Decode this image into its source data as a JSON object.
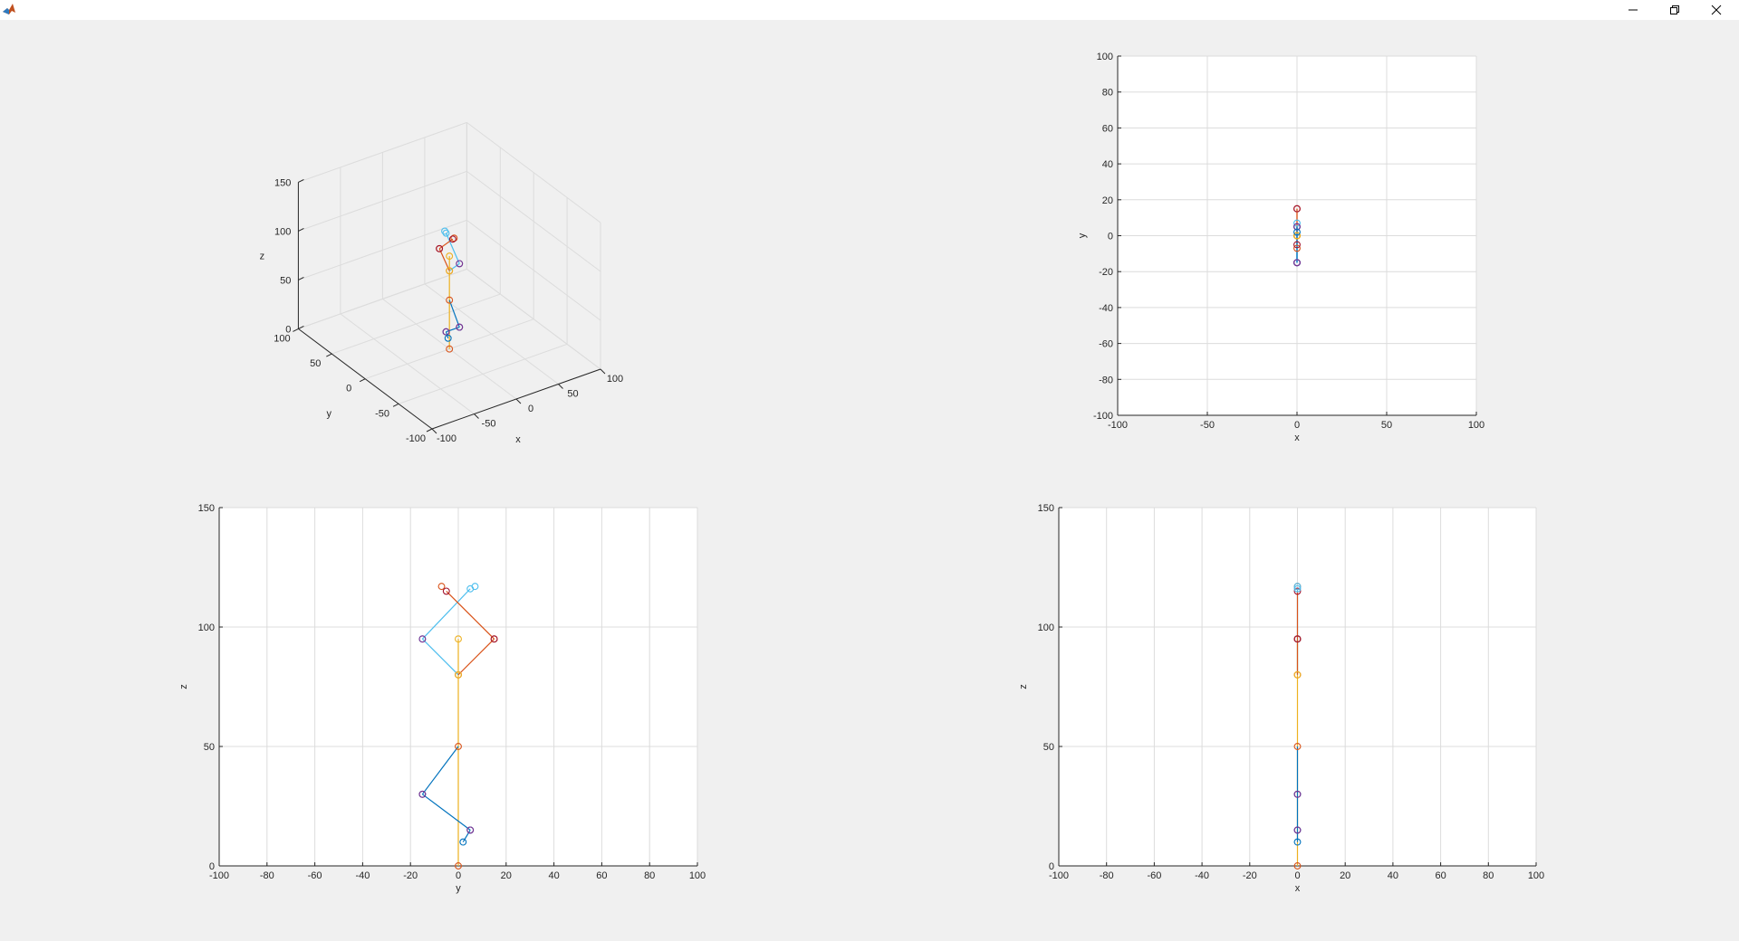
{
  "window": {
    "title": "",
    "controls": [
      "minimize-icon",
      "restore-icon",
      "close-icon"
    ]
  },
  "chart_data": [
    {
      "type": "line3d",
      "view": "3d",
      "xlabel": "x",
      "ylabel": "y",
      "zlabel": "z",
      "xlim": [
        -100,
        100
      ],
      "ylim": [
        -100,
        100
      ],
      "zlim": [
        0,
        150
      ],
      "xticks": [
        -100,
        -50,
        0,
        50,
        100
      ],
      "yticks": [
        -100,
        -50,
        0,
        50,
        100
      ],
      "zticks": [
        0,
        50,
        100,
        150
      ],
      "grid": true
    },
    {
      "type": "scatter",
      "view": "xy",
      "xlabel": "x",
      "ylabel": "y",
      "xlim": [
        -100,
        100
      ],
      "ylim": [
        -100,
        100
      ],
      "xticks": [
        -100,
        -50,
        0,
        50,
        100
      ],
      "yticks": [
        -100,
        -80,
        -60,
        -40,
        -20,
        0,
        20,
        40,
        60,
        80,
        100
      ],
      "grid": true
    },
    {
      "type": "line",
      "view": "yz",
      "xlabel": "y",
      "ylabel": "z",
      "xlim": [
        -100,
        100
      ],
      "ylim": [
        0,
        150
      ],
      "xticks": [
        -100,
        -80,
        -60,
        -40,
        -20,
        0,
        20,
        40,
        60,
        80,
        100
      ],
      "yticks": [
        0,
        50,
        100,
        150
      ],
      "grid": true
    },
    {
      "type": "line",
      "view": "xz",
      "xlabel": "x",
      "ylabel": "z",
      "xlim": [
        -100,
        100
      ],
      "ylim": [
        0,
        150
      ],
      "xticks": [
        -100,
        -80,
        -60,
        -40,
        -20,
        0,
        20,
        40,
        60,
        80,
        100
      ],
      "yticks": [
        0,
        50,
        100,
        150
      ],
      "grid": true
    }
  ],
  "skeleton": {
    "joints": {
      "root": [
        0,
        0,
        0
      ],
      "pelvis": [
        0,
        0,
        50
      ],
      "chest": [
        0,
        0,
        80
      ],
      "head": [
        0,
        0,
        95
      ],
      "l_elbow": [
        0,
        -15,
        95
      ],
      "l_hand": [
        0,
        -7,
        117
      ],
      "l_hand2": [
        0,
        -5,
        115
      ],
      "r_elbow": [
        0,
        15,
        95
      ],
      "r_hand": [
        0,
        5,
        116
      ],
      "r_hand2": [
        0,
        7,
        117
      ],
      "knee": [
        0,
        -15,
        30
      ],
      "ankle": [
        0,
        5,
        15
      ],
      "toe": [
        0,
        2,
        10
      ]
    },
    "segments": [
      {
        "from": "root",
        "to": "pelvis",
        "color": "#EDB120"
      },
      {
        "from": "pelvis",
        "to": "chest",
        "color": "#EDB120"
      },
      {
        "from": "chest",
        "to": "head",
        "color": "#EDB120"
      },
      {
        "from": "chest",
        "to": "l_elbow",
        "color": "#4DBEEE"
      },
      {
        "from": "l_elbow",
        "to": "r_hand",
        "color": "#4DBEEE"
      },
      {
        "from": "chest",
        "to": "r_elbow",
        "color": "#D95319"
      },
      {
        "from": "r_elbow",
        "to": "l_hand2",
        "color": "#D95319"
      },
      {
        "from": "pelvis",
        "to": "knee",
        "color": "#0072BD"
      },
      {
        "from": "knee",
        "to": "ankle",
        "color": "#0072BD"
      },
      {
        "from": "ankle",
        "to": "toe",
        "color": "#0072BD"
      }
    ],
    "markers": [
      {
        "joint": "root",
        "color": "#D95319"
      },
      {
        "joint": "pelvis",
        "color": "#D95319"
      },
      {
        "joint": "chest",
        "color": "#D95319"
      },
      {
        "joint": "chest",
        "color": "#EDB120"
      },
      {
        "joint": "head",
        "color": "#EDB120"
      },
      {
        "joint": "l_elbow",
        "color": "#4DBEEE"
      },
      {
        "joint": "l_elbow",
        "color": "#7E2F8E"
      },
      {
        "joint": "l_hand",
        "color": "#D95319"
      },
      {
        "joint": "l_hand2",
        "color": "#A2142F"
      },
      {
        "joint": "r_elbow",
        "color": "#D95319"
      },
      {
        "joint": "r_elbow",
        "color": "#A2142F"
      },
      {
        "joint": "r_hand",
        "color": "#4DBEEE"
      },
      {
        "joint": "r_hand2",
        "color": "#4DBEEE"
      },
      {
        "joint": "knee",
        "color": "#0072BD"
      },
      {
        "joint": "knee",
        "color": "#7E2F8E"
      },
      {
        "joint": "ankle",
        "color": "#0072BD"
      },
      {
        "joint": "ankle",
        "color": "#7E2F8E"
      },
      {
        "joint": "toe",
        "color": "#0072BD"
      }
    ]
  }
}
